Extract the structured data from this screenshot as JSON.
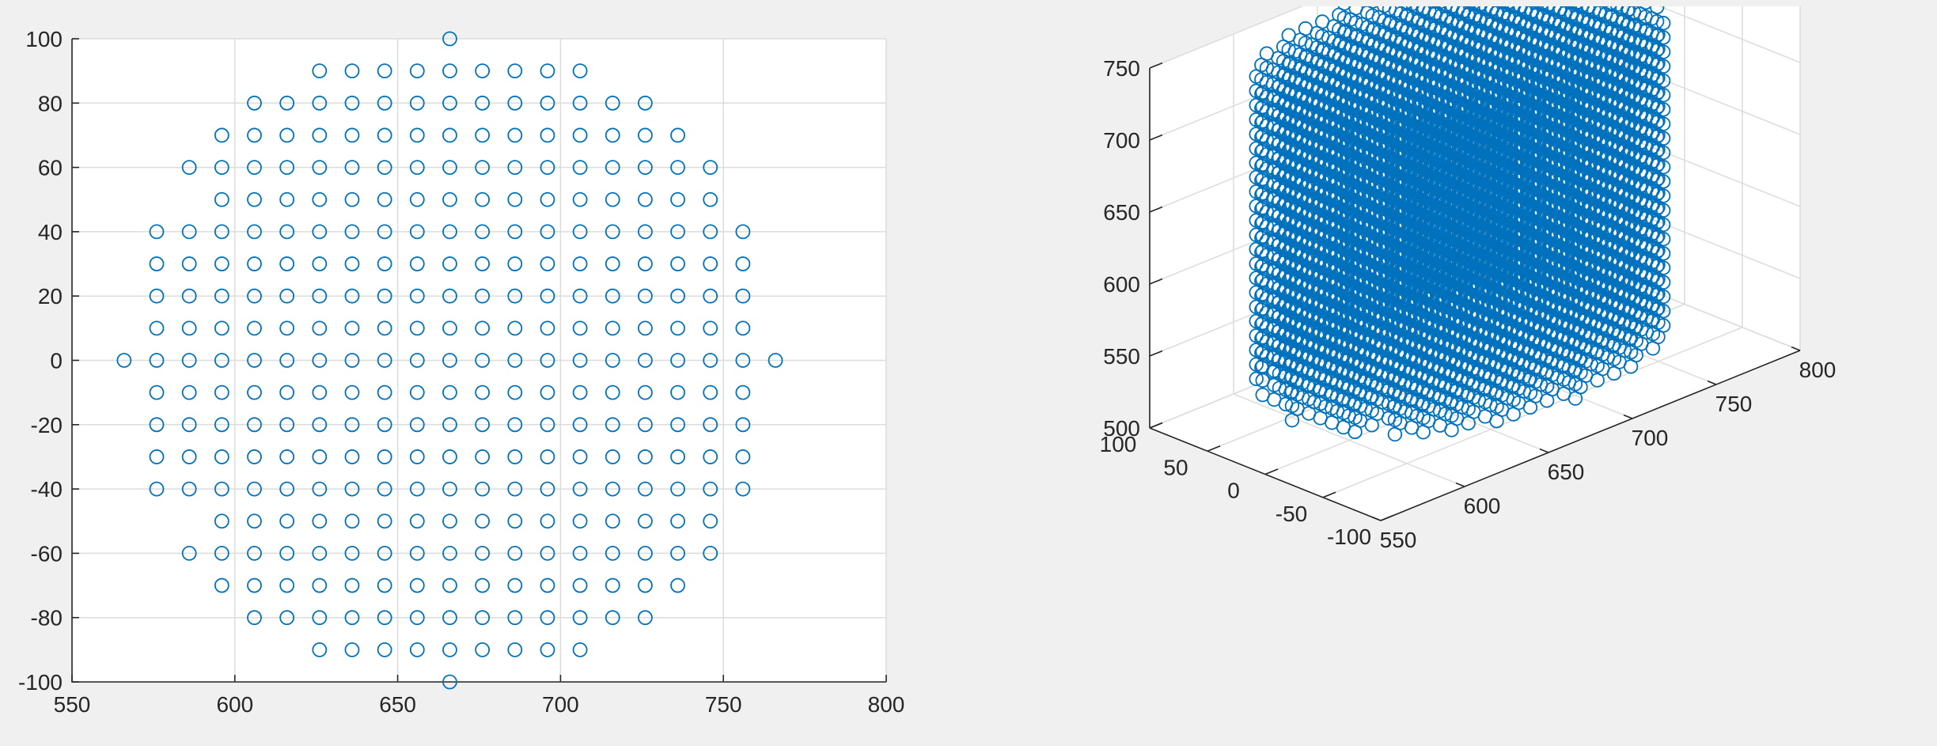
{
  "chart_data": [
    {
      "type": "scatter",
      "title": "",
      "xlabel": "",
      "ylabel": "",
      "xlim": [
        550,
        800
      ],
      "ylim": [
        -100,
        100
      ],
      "x_ticks": [
        "550",
        "600",
        "650",
        "700",
        "750",
        "800"
      ],
      "y_ticks": [
        "100",
        "80",
        "60",
        "40",
        "20",
        "0",
        "-20",
        "-40",
        "-60",
        "-80",
        "-100"
      ],
      "grid": true,
      "marker": "circle-open",
      "marker_color": "#0072bd",
      "points_description": "hexagonal lattice disk: columns spaced 10 apart, alternate columns offset by 10 in y, centered at (666, 0)",
      "rows": [
        {
          "y": 100,
          "x": [
            666
          ]
        },
        {
          "y": 90,
          "x": [
            626,
            636,
            646,
            656,
            666,
            676,
            686,
            696,
            706
          ]
        },
        {
          "y": 80,
          "x": [
            606,
            616,
            626,
            636,
            646,
            656,
            666,
            676,
            686,
            696,
            706,
            716,
            726
          ]
        },
        {
          "y": 70,
          "x": [
            596,
            606,
            616,
            626,
            636,
            646,
            656,
            666,
            676,
            686,
            696,
            706,
            716,
            726,
            736
          ]
        },
        {
          "y": 60,
          "x": [
            586,
            596,
            606,
            616,
            626,
            636,
            646,
            656,
            666,
            676,
            686,
            696,
            706,
            716,
            726,
            736,
            746
          ]
        },
        {
          "y": 50,
          "x": [
            596,
            606,
            616,
            626,
            636,
            646,
            656,
            666,
            676,
            686,
            696,
            706,
            716,
            726,
            736,
            746
          ]
        },
        {
          "y": 40,
          "x": [
            576,
            586,
            596,
            606,
            616,
            626,
            636,
            646,
            656,
            666,
            676,
            686,
            696,
            706,
            716,
            726,
            736,
            746,
            756
          ]
        },
        {
          "y": 30,
          "x": [
            576,
            586,
            596,
            606,
            616,
            626,
            636,
            646,
            656,
            666,
            676,
            686,
            696,
            706,
            716,
            726,
            736,
            746,
            756
          ]
        },
        {
          "y": 20,
          "x": [
            576,
            586,
            596,
            606,
            616,
            626,
            636,
            646,
            656,
            666,
            676,
            686,
            696,
            706,
            716,
            726,
            736,
            746,
            756
          ]
        },
        {
          "y": 10,
          "x": [
            576,
            586,
            596,
            606,
            616,
            626,
            636,
            646,
            656,
            666,
            676,
            686,
            696,
            706,
            716,
            726,
            736,
            746,
            756
          ]
        },
        {
          "y": 0,
          "x": [
            566,
            576,
            586,
            596,
            606,
            616,
            626,
            636,
            646,
            656,
            666,
            676,
            686,
            696,
            706,
            716,
            726,
            736,
            746,
            756,
            766
          ]
        },
        {
          "y": -10,
          "x": [
            576,
            586,
            596,
            606,
            616,
            626,
            636,
            646,
            656,
            666,
            676,
            686,
            696,
            706,
            716,
            726,
            736,
            746,
            756
          ]
        },
        {
          "y": -20,
          "x": [
            576,
            586,
            596,
            606,
            616,
            626,
            636,
            646,
            656,
            666,
            676,
            686,
            696,
            706,
            716,
            726,
            736,
            746,
            756
          ]
        },
        {
          "y": -30,
          "x": [
            576,
            586,
            596,
            606,
            616,
            626,
            636,
            646,
            656,
            666,
            676,
            686,
            696,
            706,
            716,
            726,
            736,
            746,
            756
          ]
        },
        {
          "y": -40,
          "x": [
            576,
            586,
            596,
            606,
            616,
            626,
            636,
            646,
            656,
            666,
            676,
            686,
            696,
            706,
            716,
            726,
            736,
            746,
            756
          ]
        },
        {
          "y": -50,
          "x": [
            596,
            606,
            616,
            626,
            636,
            646,
            656,
            666,
            676,
            686,
            696,
            706,
            716,
            726,
            736,
            746
          ]
        },
        {
          "y": -60,
          "x": [
            586,
            596,
            606,
            616,
            626,
            636,
            646,
            656,
            666,
            676,
            686,
            696,
            706,
            716,
            726,
            736,
            746
          ]
        },
        {
          "y": -70,
          "x": [
            596,
            606,
            616,
            626,
            636,
            646,
            656,
            666,
            676,
            686,
            696,
            706,
            716,
            726,
            736
          ]
        },
        {
          "y": -80,
          "x": [
            606,
            616,
            626,
            636,
            646,
            656,
            666,
            676,
            686,
            696,
            706,
            716,
            726
          ]
        },
        {
          "y": -90,
          "x": [
            626,
            636,
            646,
            656,
            666,
            676,
            686,
            696,
            706
          ]
        },
        {
          "y": -100,
          "x": [
            666
          ]
        }
      ]
    },
    {
      "type": "scatter3d",
      "title": "",
      "xlabel": "",
      "ylabel": "",
      "zlabel": "",
      "xlim": [
        550,
        800
      ],
      "ylim": [
        -100,
        100
      ],
      "zlim": [
        500,
        750
      ],
      "x_ticks": [
        "550",
        "600",
        "650",
        "700",
        "750",
        "800"
      ],
      "y_ticks": [
        "100",
        "50",
        "0",
        "-50",
        "-100"
      ],
      "z_ticks": [
        "750",
        "700",
        "650",
        "600",
        "550",
        "500"
      ],
      "grid": true,
      "marker": "circle-open",
      "marker_color": "#0072bd",
      "points_description": "the 2D hexagonal disk lattice (same x/y points as left chart) extruded along z at every 10 units",
      "z_levels": [
        530,
        540,
        550,
        560,
        570,
        580,
        590,
        600,
        610,
        620,
        630,
        640,
        650,
        660,
        670,
        680,
        690,
        700,
        710,
        720,
        730,
        740
      ]
    }
  ]
}
